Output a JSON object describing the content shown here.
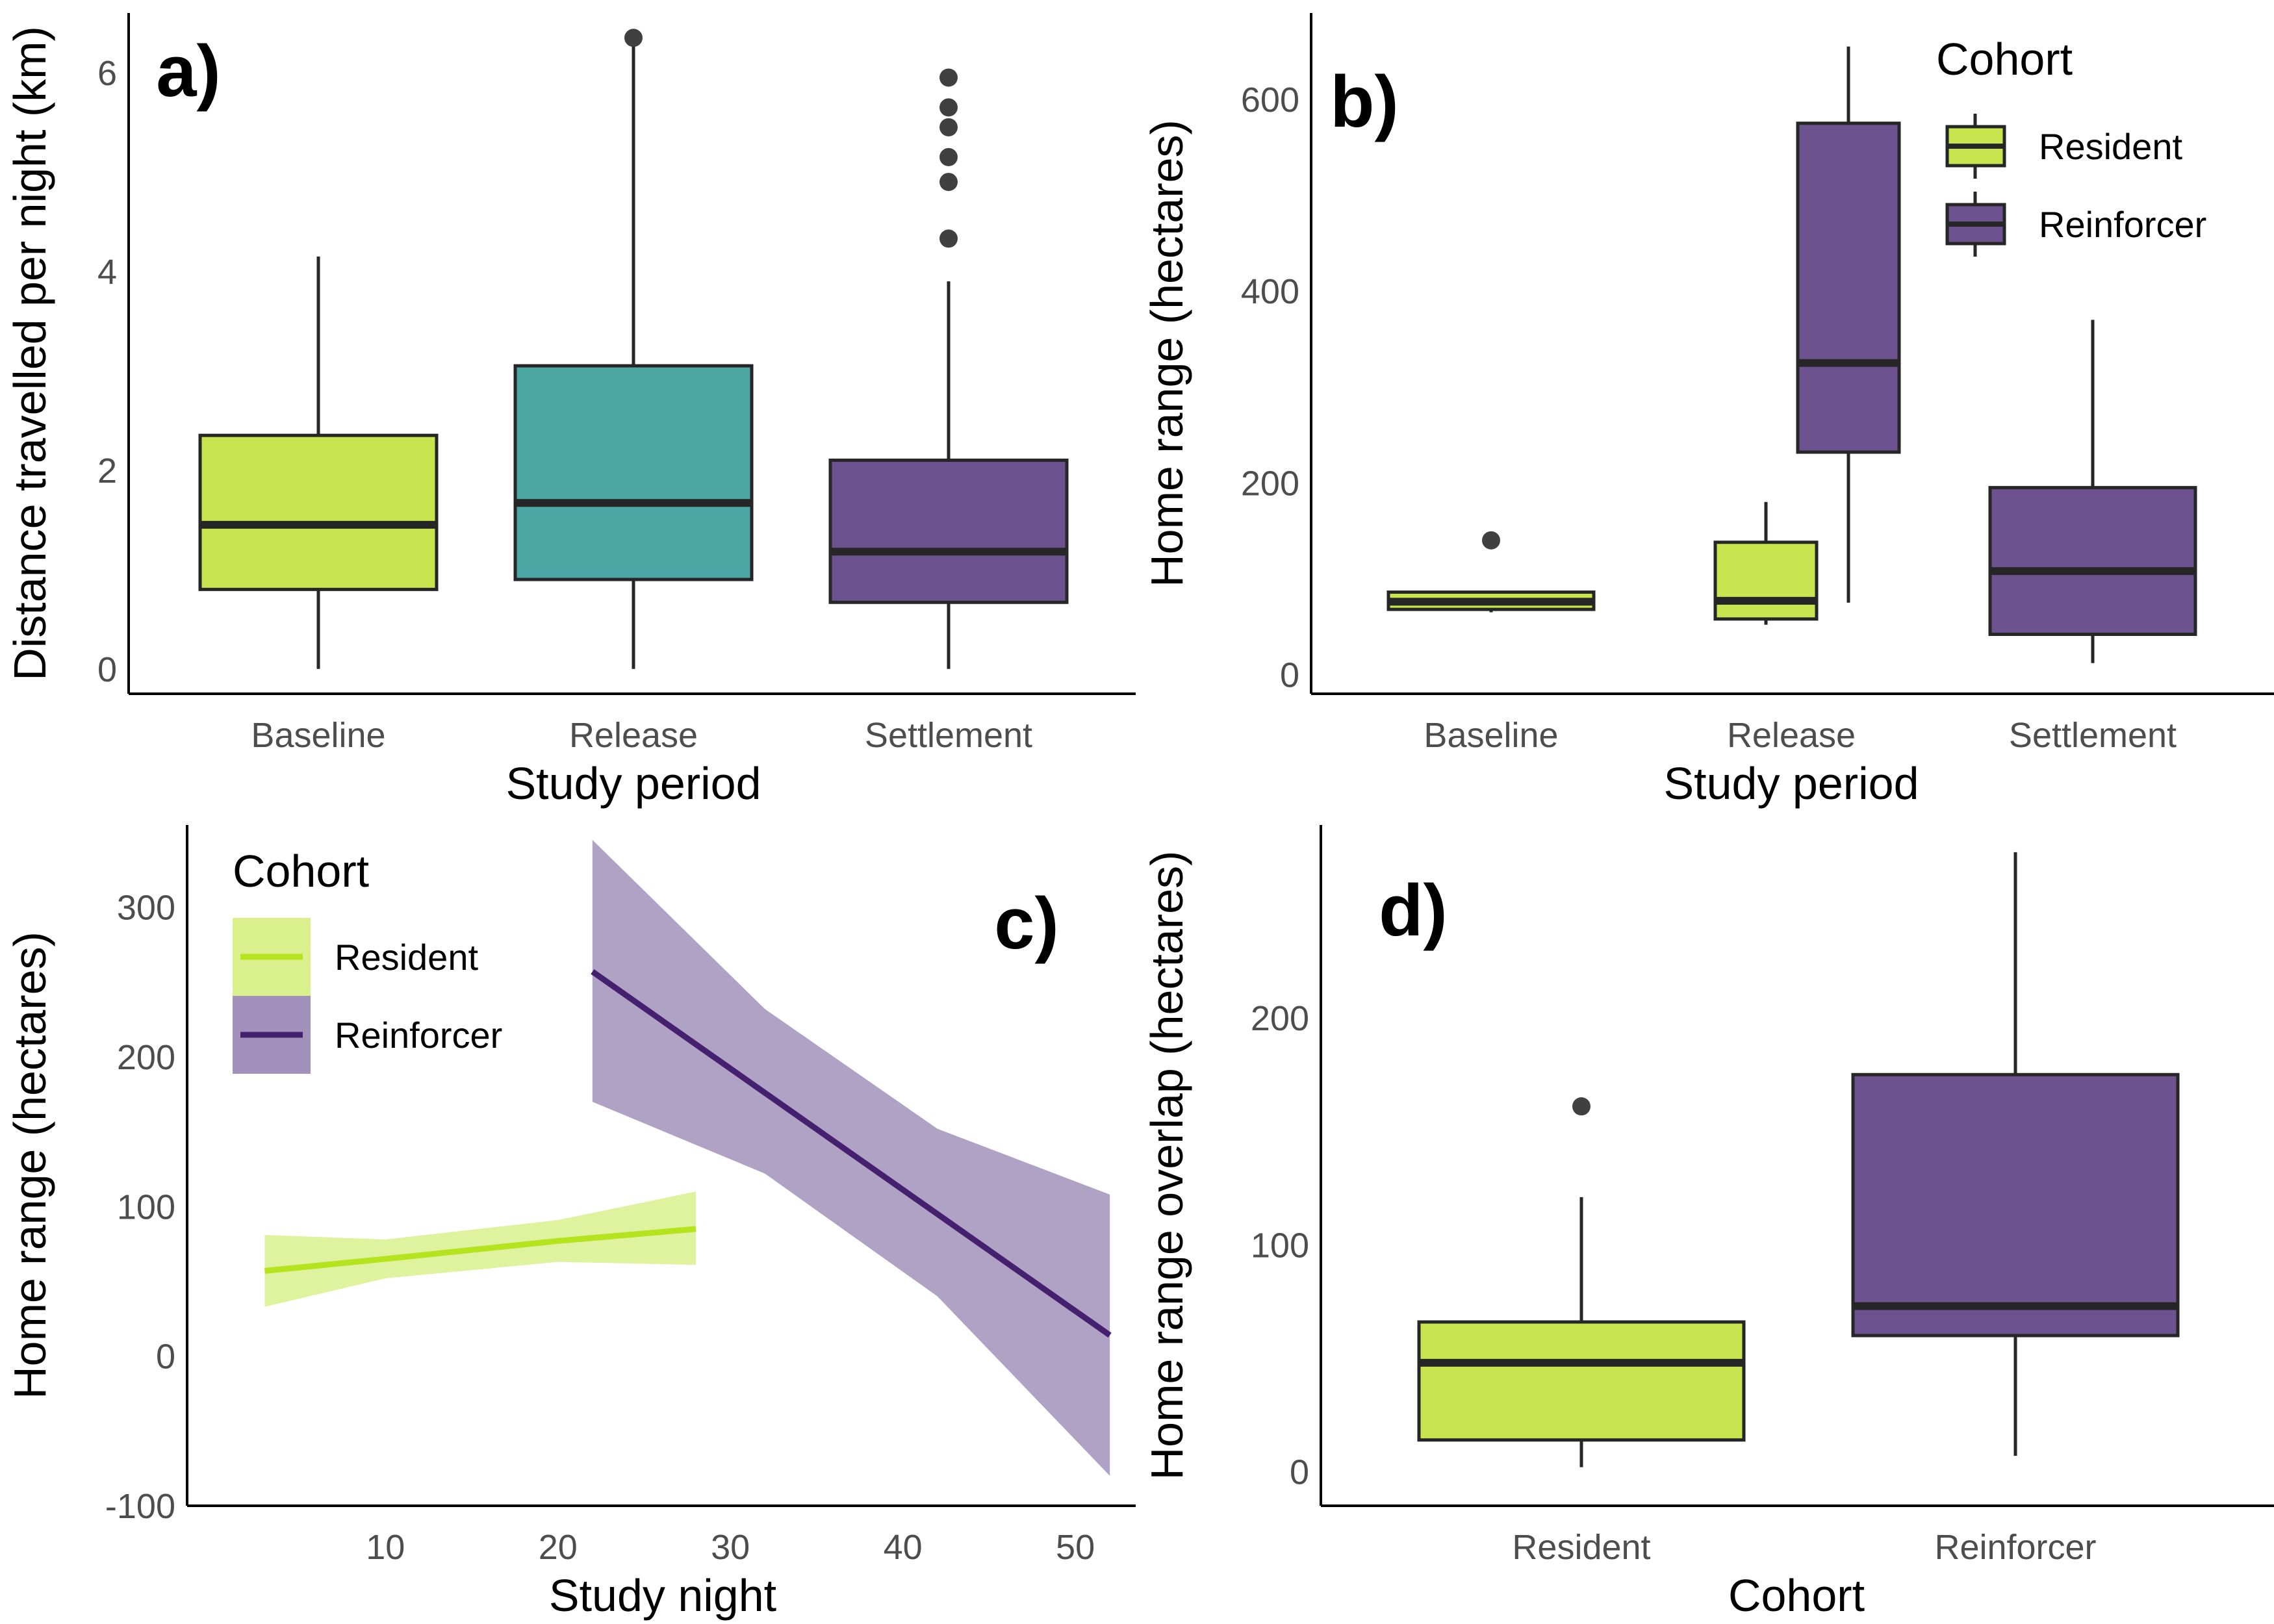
{
  "chart_data": [
    {
      "panel_label": "a)",
      "type": "box",
      "xlabel": "Study period",
      "ylabel": "Distance travelled per night (km)",
      "ylim": [
        -0.25,
        6.6
      ],
      "yticks": [
        0,
        2,
        4,
        6
      ],
      "categories": [
        "Baseline",
        "Release",
        "Settlement"
      ],
      "boxes": [
        {
          "category": "Baseline",
          "fill": "#c8e54f",
          "min": 0.0,
          "q1": 0.8,
          "median": 1.45,
          "q3": 2.35,
          "max": 4.15,
          "outliers": []
        },
        {
          "category": "Release",
          "fill": "#4ba6a4",
          "min": 0.0,
          "q1": 0.9,
          "median": 1.67,
          "q3": 3.05,
          "max": 6.35,
          "outliers": [
            6.35
          ]
        },
        {
          "category": "Settlement",
          "fill": "#6d5290",
          "min": 0.0,
          "q1": 0.67,
          "median": 1.18,
          "q3": 2.1,
          "max": 3.9,
          "outliers": [
            4.33,
            4.9,
            5.15,
            5.45,
            5.65,
            5.95
          ]
        }
      ]
    },
    {
      "panel_label": "b)",
      "type": "box",
      "xlabel": "Study period",
      "ylabel": "Home range (hectares)",
      "ylim": [
        -20,
        690
      ],
      "yticks": [
        0,
        200,
        400,
        600
      ],
      "categories": [
        "Baseline",
        "Release",
        "Settlement"
      ],
      "legend": {
        "title": "Cohort",
        "position": "top-right",
        "entries": [
          {
            "label": "Resident",
            "color": "#c8e54f"
          },
          {
            "label": "Reinforcer",
            "color": "#6d5290"
          }
        ]
      },
      "boxes": [
        {
          "category": "Baseline",
          "cohort": "Resident",
          "fill": "#c8e54f",
          "min": 65,
          "q1": 68,
          "median": 76,
          "q3": 86,
          "max": 86,
          "outliers": [
            140
          ]
        },
        {
          "category": "Release",
          "cohort": "Resident",
          "fill": "#c8e54f",
          "min": 52,
          "q1": 58,
          "median": 77,
          "q3": 138,
          "max": 180,
          "outliers": []
        },
        {
          "category": "Release",
          "cohort": "Reinforcer",
          "fill": "#6d5290",
          "min": 75,
          "q1": 232,
          "median": 325,
          "q3": 575,
          "max": 655,
          "outliers": []
        },
        {
          "category": "Settlement",
          "cohort": "Reinforcer",
          "fill": "#6d5290",
          "min": 12,
          "q1": 42,
          "median": 108,
          "q3": 195,
          "max": 370,
          "outliers": []
        }
      ]
    },
    {
      "panel_label": "c)",
      "type": "line",
      "xlabel": "Study night",
      "ylabel": "Home range (hectares)",
      "xlim": [
        -1.5,
        53.5
      ],
      "ylim": [
        -100,
        355
      ],
      "xticks": [
        10,
        20,
        30,
        40,
        50
      ],
      "yticks": [
        -100,
        0,
        100,
        200,
        300
      ],
      "legend": {
        "title": "Cohort",
        "position": "top-left",
        "entries": [
          {
            "label": "Resident",
            "color": "#b5e31d"
          },
          {
            "label": "Reinforcer",
            "color": "#45206e"
          }
        ]
      },
      "series": [
        {
          "name": "Resident",
          "color": "#b5e31d",
          "band_color": "#d9f08d",
          "x": [
            3,
            10,
            20,
            28
          ],
          "y": [
            57,
            65,
            77,
            85
          ],
          "lower": [
            33,
            52,
            63,
            61
          ],
          "upper": [
            81,
            78,
            91,
            110
          ]
        },
        {
          "name": "Reinforcer",
          "color": "#45206e",
          "band_color": "#a292bb",
          "x": [
            22,
            32,
            42,
            52
          ],
          "y": [
            257,
            176,
            95,
            14
          ],
          "lower": [
            170,
            122,
            40,
            -80
          ],
          "upper": [
            345,
            232,
            152,
            108
          ]
        }
      ]
    },
    {
      "panel_label": "d)",
      "type": "box",
      "xlabel": "Cohort",
      "ylabel": "Home range overlap (hectares)",
      "ylim": [
        -15,
        285
      ],
      "yticks": [
        0,
        100,
        200
      ],
      "categories": [
        "Resident",
        "Reinforcer"
      ],
      "boxes": [
        {
          "category": "Resident",
          "fill": "#c8e54f",
          "min": 2,
          "q1": 14,
          "median": 48,
          "q3": 66,
          "max": 121,
          "outliers": [
            161
          ]
        },
        {
          "category": "Reinforcer",
          "fill": "#6d5290",
          "min": 7,
          "q1": 60,
          "median": 73,
          "q3": 175,
          "max": 273,
          "outliers": []
        }
      ]
    }
  ]
}
